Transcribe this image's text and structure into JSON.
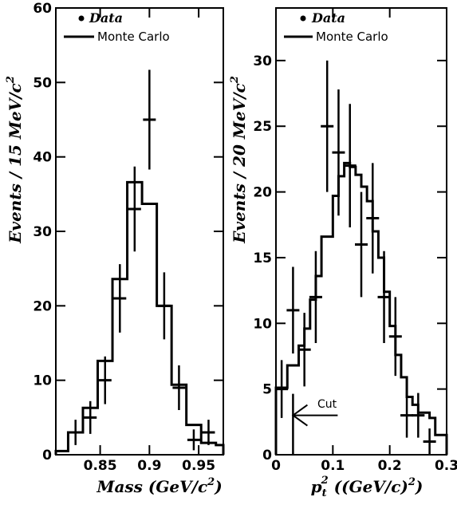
{
  "chart_data": [
    {
      "type": "histogram",
      "xlabel": "Mass (GeV/c",
      "xlabel_sup": "2",
      "xlabel_tail": ")",
      "ylabel": "Events / 15 MeV/c",
      "ylabel_sup": "2",
      "xlim": [
        0.805,
        0.975
      ],
      "ylim": [
        0,
        60
      ],
      "xticks": [
        {
          "value": 0.85,
          "label": "0.85"
        },
        {
          "value": 0.9,
          "label": "0.9"
        },
        {
          "value": 0.95,
          "label": "0.95"
        }
      ],
      "yticks": [
        {
          "value": 0,
          "label": "0"
        },
        {
          "value": 10,
          "label": "10"
        },
        {
          "value": 20,
          "label": "20"
        },
        {
          "value": 30,
          "label": "30"
        },
        {
          "value": 40,
          "label": "40"
        },
        {
          "value": 50,
          "label": "50"
        },
        {
          "value": 60,
          "label": "60"
        }
      ],
      "legend": {
        "placement": "top-left",
        "data_label": "Data",
        "mc_label": "Monte Carlo"
      },
      "series": [
        {
          "name": "Data",
          "style": "points-with-errors",
          "points": [
            {
              "x": 0.825,
              "y": 3,
              "err": 1.7
            },
            {
              "x": 0.84,
              "y": 5,
              "err": 2.2
            },
            {
              "x": 0.855,
              "y": 10,
              "err": 3.2
            },
            {
              "x": 0.87,
              "y": 21,
              "err": 4.6
            },
            {
              "x": 0.885,
              "y": 33,
              "err": 5.7
            },
            {
              "x": 0.9,
              "y": 45,
              "err": 6.7
            },
            {
              "x": 0.915,
              "y": 20,
              "err": 4.5
            },
            {
              "x": 0.93,
              "y": 9,
              "err": 3.0
            },
            {
              "x": 0.945,
              "y": 2,
              "err": 1.4
            },
            {
              "x": 0.96,
              "y": 3,
              "err": 1.7
            }
          ]
        },
        {
          "name": "Monte Carlo",
          "style": "step",
          "edges": [
            0.805,
            0.8175,
            0.8325,
            0.8475,
            0.8625,
            0.8775,
            0.8925,
            0.9075,
            0.9225,
            0.9375,
            0.9525,
            0.9675,
            0.975
          ],
          "values": [
            0.5,
            3,
            6.3,
            12.6,
            23.6,
            36.6,
            33.7,
            20,
            9.4,
            4,
            1.6,
            1.3
          ]
        }
      ]
    },
    {
      "type": "histogram",
      "xlabel": "p",
      "xlabel_sub": "t",
      "xlabel_sup": "2",
      "xlabel_tail": " ((GeV/c)",
      "xlabel_tail_sup": "2",
      "xlabel_end": ")",
      "ylabel": "Events / 20 MeV/c",
      "ylabel_sup": "2",
      "xlim": [
        0,
        0.3
      ],
      "ylim": [
        0,
        34
      ],
      "xticks": [
        {
          "value": 0,
          "label": "0"
        },
        {
          "value": 0.1,
          "label": "0.1"
        },
        {
          "value": 0.2,
          "label": "0.2"
        },
        {
          "value": 0.3,
          "label": "0.3"
        }
      ],
      "yticks": [
        {
          "value": 0,
          "label": "0"
        },
        {
          "value": 5,
          "label": "5"
        },
        {
          "value": 10,
          "label": "10"
        },
        {
          "value": 15,
          "label": "15"
        },
        {
          "value": 20,
          "label": "20"
        },
        {
          "value": 25,
          "label": "25"
        },
        {
          "value": 30,
          "label": "30"
        }
      ],
      "legend": {
        "placement": "top-left",
        "data_label": "Data",
        "mc_label": "Monte Carlo"
      },
      "annotation": {
        "text": "Cut",
        "x": 0.03,
        "y": 3
      },
      "series": [
        {
          "name": "Data",
          "style": "points-with-errors",
          "points": [
            {
              "x": 0.01,
              "y": 5,
              "err": 2.2
            },
            {
              "x": 0.03,
              "y": 11,
              "err": 3.3
            },
            {
              "x": 0.05,
              "y": 8,
              "err": 2.8
            },
            {
              "x": 0.07,
              "y": 12,
              "err": 3.5
            },
            {
              "x": 0.09,
              "y": 25,
              "err": 5.0
            },
            {
              "x": 0.11,
              "y": 23,
              "err": 4.8
            },
            {
              "x": 0.13,
              "y": 22,
              "err": 4.7
            },
            {
              "x": 0.15,
              "y": 16,
              "err": 4.0
            },
            {
              "x": 0.17,
              "y": 18,
              "err": 4.2
            },
            {
              "x": 0.19,
              "y": 12,
              "err": 3.5
            },
            {
              "x": 0.21,
              "y": 9,
              "err": 3.0
            },
            {
              "x": 0.23,
              "y": 3,
              "err": 1.7
            },
            {
              "x": 0.25,
              "y": 3,
              "err": 1.7
            },
            {
              "x": 0.27,
              "y": 1,
              "err": 1.0
            }
          ]
        },
        {
          "name": "Monte Carlo",
          "style": "step",
          "edges": [
            0,
            0.02,
            0.04,
            0.05,
            0.06,
            0.07,
            0.08,
            0.1,
            0.11,
            0.12,
            0.13,
            0.14,
            0.15,
            0.16,
            0.17,
            0.18,
            0.19,
            0.2,
            0.21,
            0.22,
            0.23,
            0.24,
            0.25,
            0.26,
            0.27,
            0.28,
            0.3
          ],
          "values": [
            5.1,
            6.8,
            8.3,
            9.6,
            11.8,
            13.6,
            16.6,
            19.7,
            21.2,
            22.2,
            21.9,
            21.3,
            20.4,
            19.3,
            17,
            15,
            12.4,
            9.8,
            7.6,
            5.9,
            4.4,
            3.8,
            3.2,
            3.2,
            2.8,
            1.5
          ]
        }
      ]
    }
  ]
}
